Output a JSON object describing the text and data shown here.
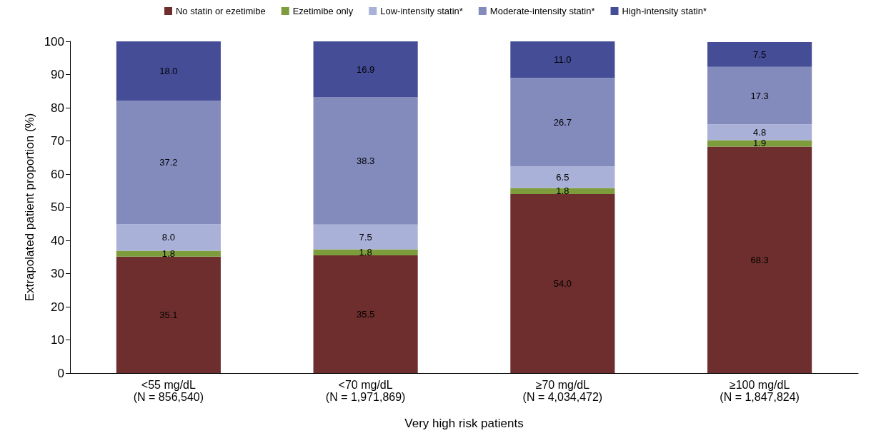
{
  "chart_data": {
    "type": "bar",
    "stacked": true,
    "xlabel": "Very high risk patients",
    "ylabel": "Extrapolated patient proportion (%)",
    "categories": [
      "<55 mg/dL\n(N = 856,540)",
      "<70 mg/dL\n(N = 1,971,869)",
      "≥70 mg/dL\n(N = 4,034,472)",
      "≥100 mg/dL\n(N = 1,847,824)"
    ],
    "series": [
      {
        "name": "No statin or ezetimibe",
        "color": "#6e2e2e",
        "values": [
          35.1,
          35.5,
          54.0,
          68.3
        ]
      },
      {
        "name": "Ezetimibe only",
        "color": "#7d9c3c",
        "values": [
          1.8,
          1.8,
          1.8,
          1.9
        ]
      },
      {
        "name": "Low-intensity statin*",
        "color": "#aab1d8",
        "values": [
          8.0,
          7.5,
          6.5,
          4.8
        ]
      },
      {
        "name": "Moderate-intensity statin*",
        "color": "#838bbd",
        "values": [
          37.2,
          38.3,
          26.7,
          17.3
        ]
      },
      {
        "name": "High-intensity statin*",
        "color": "#454d97",
        "values": [
          18.0,
          16.9,
          11.0,
          7.5
        ]
      }
    ],
    "value_labels": [
      [
        "35.1",
        "35.5",
        "54.0",
        "68.3"
      ],
      [
        "1.8",
        "1.8",
        "1.8",
        "1.9"
      ],
      [
        "8.0",
        "7.5",
        "6.5",
        "4.8"
      ],
      [
        "37.2",
        "38.3",
        "26.7",
        "17.3"
      ],
      [
        "18.0",
        "16.9",
        "11.0",
        "7.5"
      ]
    ],
    "ylim": [
      0,
      100
    ],
    "yticks": [
      0,
      10,
      20,
      30,
      40,
      50,
      60,
      70,
      80,
      90,
      100
    ],
    "grid": false,
    "legend": "top"
  }
}
